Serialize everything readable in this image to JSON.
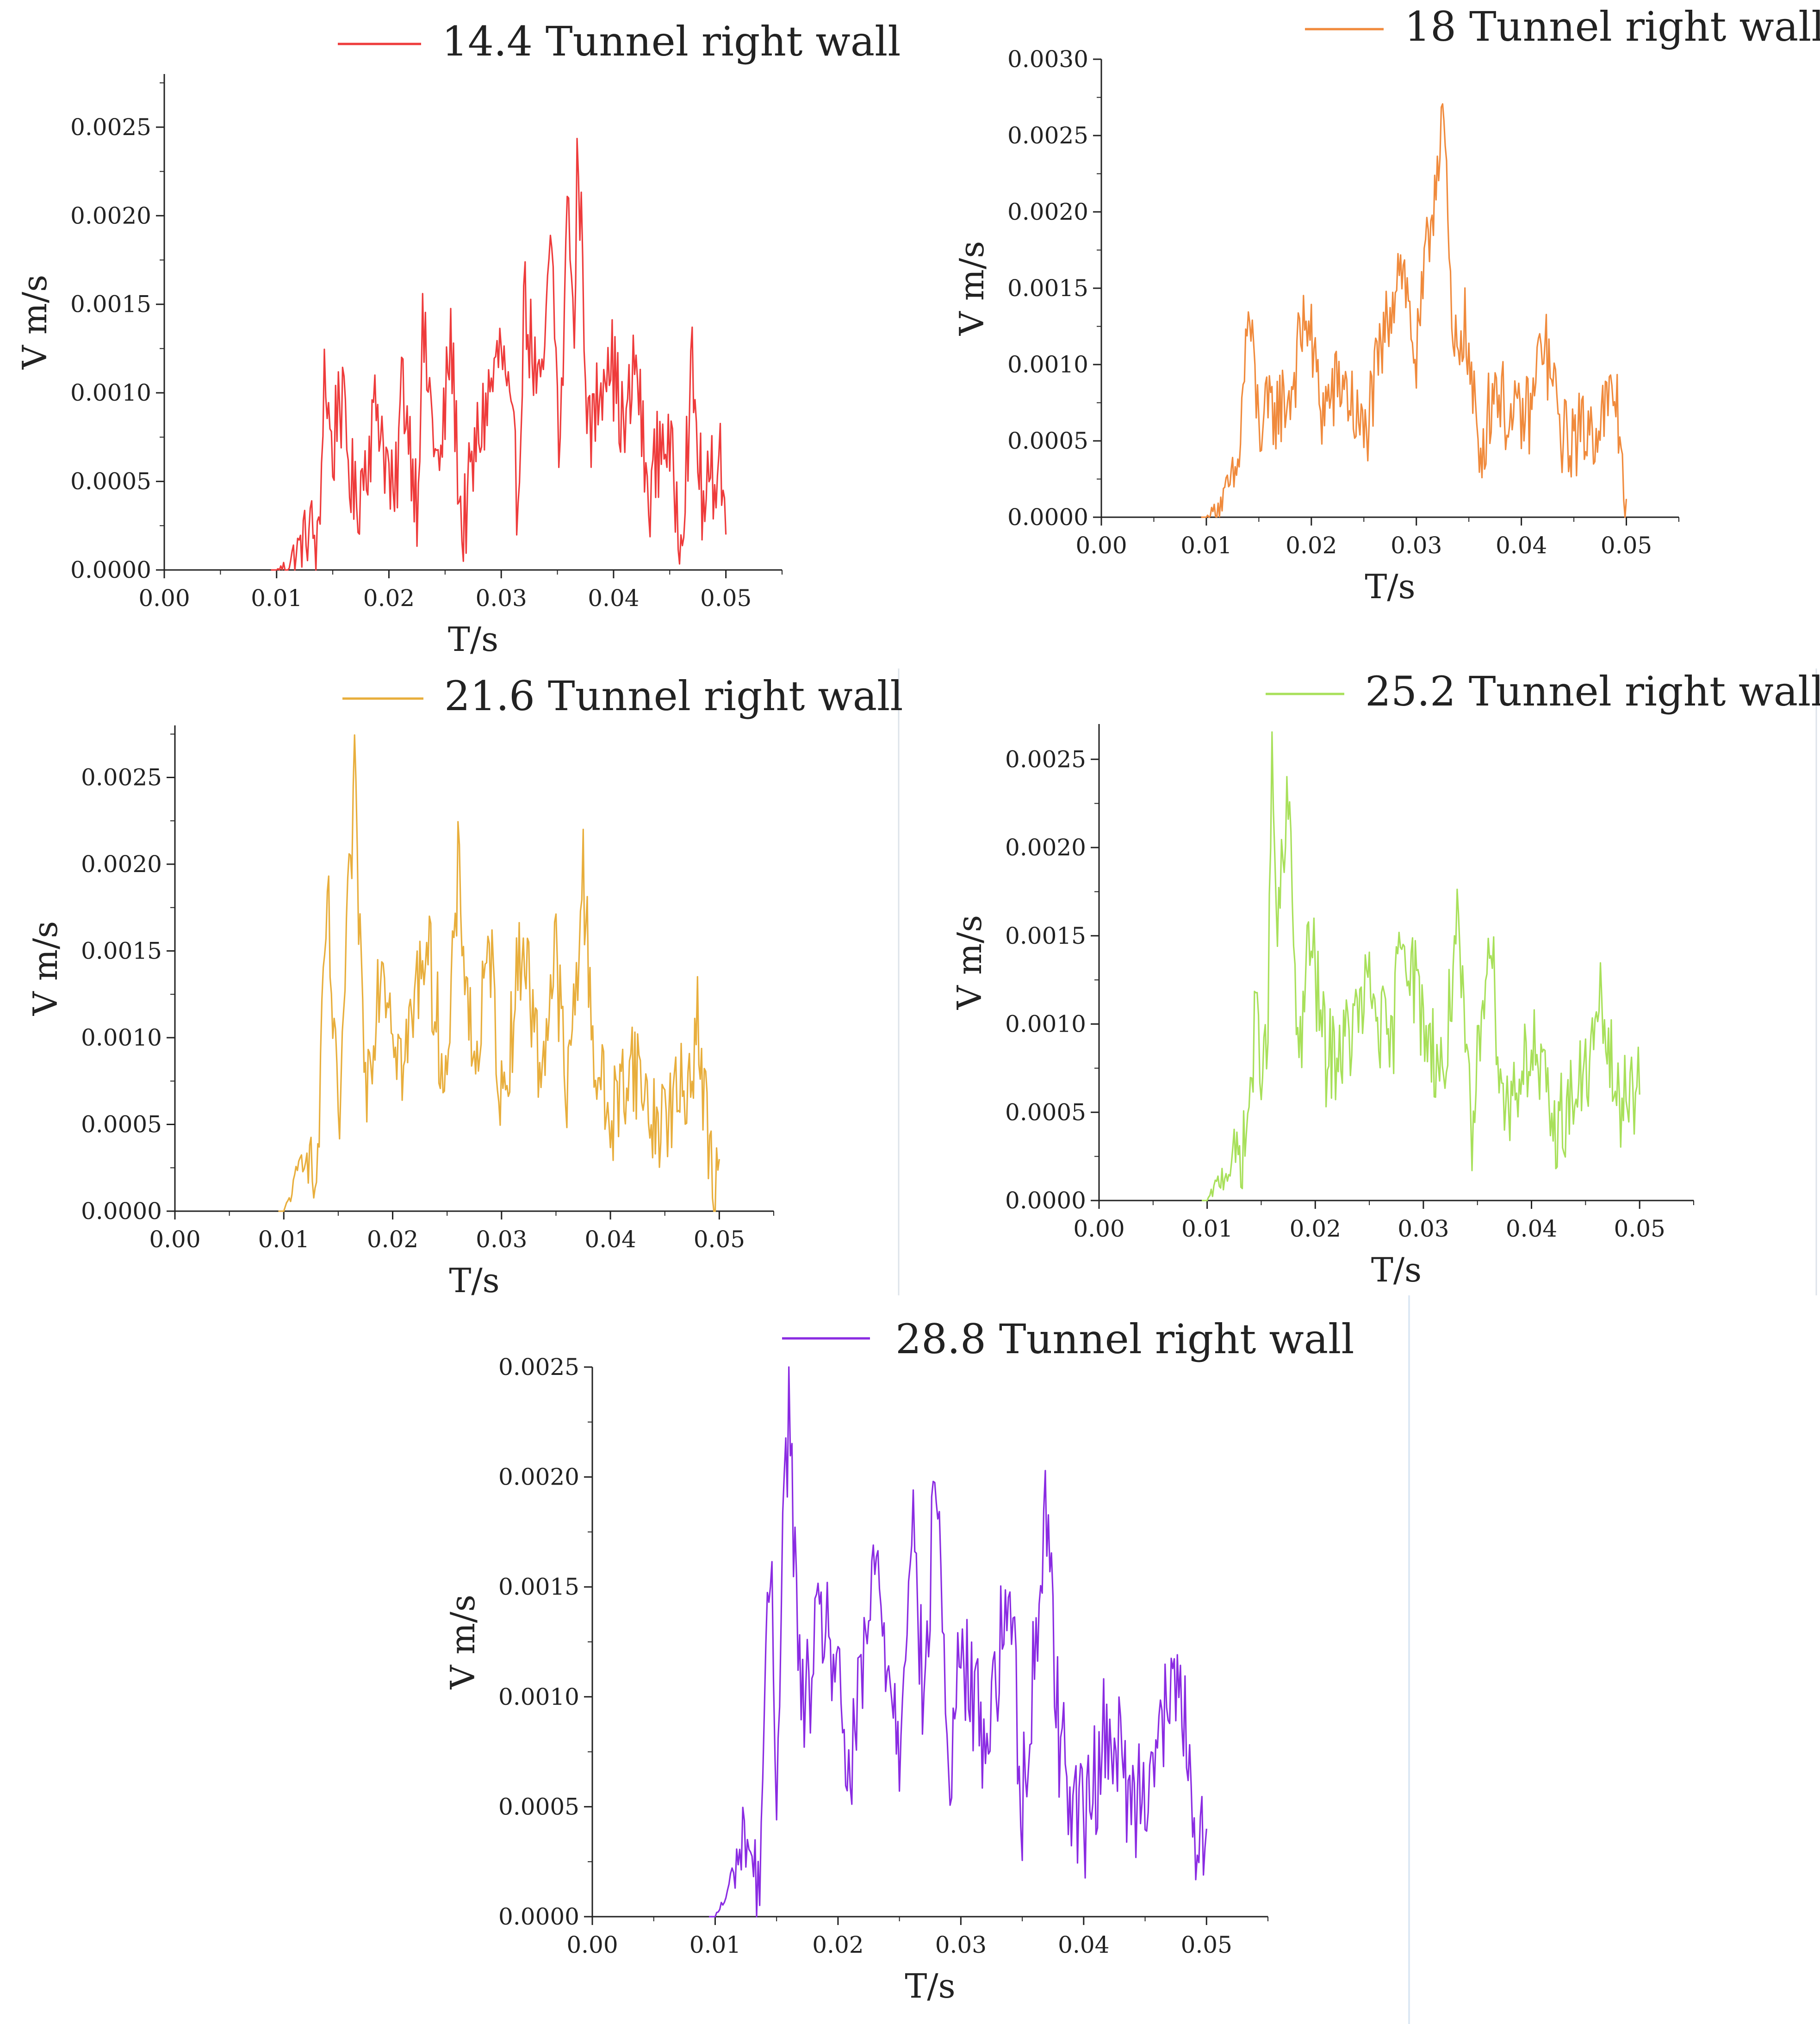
{
  "figure": {
    "background": "#ffffff",
    "axis_color": "#222222"
  },
  "chart_data": [
    {
      "type": "line",
      "series": [
        {
          "name": "14.4 Tunnel right wall",
          "color": "#ee3b3b"
        }
      ],
      "xlabel": "T/s",
      "ylabel": "V m/s",
      "xlim": [
        0,
        0.055
      ],
      "ylim": [
        0,
        0.0028
      ],
      "xticks": [
        0.0,
        0.01,
        0.02,
        0.03,
        0.04,
        0.05
      ],
      "xtick_labels": [
        "0.00",
        "0.01",
        "0.02",
        "0.03",
        "0.04",
        "0.05"
      ],
      "yticks": [
        0.0,
        0.0005,
        0.001,
        0.0015,
        0.002,
        0.0025
      ],
      "ytick_labels": [
        "0.0000",
        "0.0005",
        "0.0010",
        "0.0015",
        "0.0020",
        "0.0025"
      ],
      "keypoints": [
        [
          0.01,
          0.0
        ],
        [
          0.0108,
          2e-05
        ],
        [
          0.012,
          0.00012
        ],
        [
          0.013,
          0.00025
        ],
        [
          0.0138,
          8e-05
        ],
        [
          0.0142,
          0.00119
        ],
        [
          0.015,
          0.0006
        ],
        [
          0.0155,
          0.00105
        ],
        [
          0.017,
          0.00035
        ],
        [
          0.019,
          0.00095
        ],
        [
          0.0205,
          0.0003
        ],
        [
          0.0212,
          0.0011
        ],
        [
          0.0225,
          0.0004
        ],
        [
          0.023,
          0.00132
        ],
        [
          0.0245,
          0.0005
        ],
        [
          0.0255,
          0.00131
        ],
        [
          0.0265,
          0.0002
        ],
        [
          0.028,
          0.00077
        ],
        [
          0.03,
          0.00125
        ],
        [
          0.0315,
          0.0004
        ],
        [
          0.032,
          0.00155
        ],
        [
          0.0335,
          0.0009
        ],
        [
          0.0345,
          0.00185
        ],
        [
          0.0352,
          0.0006
        ],
        [
          0.036,
          0.0022
        ],
        [
          0.0365,
          0.0012
        ],
        [
          0.0368,
          0.00246
        ],
        [
          0.0378,
          0.0007
        ],
        [
          0.0395,
          0.0013
        ],
        [
          0.041,
          0.00075
        ],
        [
          0.042,
          0.0012
        ],
        [
          0.043,
          0.0004
        ],
        [
          0.0445,
          0.0008
        ],
        [
          0.046,
          0.00025
        ],
        [
          0.047,
          0.0011
        ],
        [
          0.048,
          0.0003
        ],
        [
          0.0495,
          0.0007
        ],
        [
          0.05,
          0.0002
        ]
      ],
      "amplitude": 0.00028
    },
    {
      "type": "line",
      "series": [
        {
          "name": "18 Tunnel right wall",
          "color": "#f08a3c"
        }
      ],
      "xlabel": "T/s",
      "ylabel": "V m/s",
      "xlim": [
        0,
        0.055
      ],
      "ylim": [
        0,
        0.003
      ],
      "xticks": [
        0.0,
        0.01,
        0.02,
        0.03,
        0.04,
        0.05
      ],
      "xtick_labels": [
        "0.00",
        "0.01",
        "0.02",
        "0.03",
        "0.04",
        "0.05"
      ],
      "yticks": [
        0.0,
        0.0005,
        0.001,
        0.0015,
        0.002,
        0.0025,
        0.003
      ],
      "ytick_labels": [
        "0.0000",
        "0.0005",
        "0.0010",
        "0.0015",
        "0.0020",
        "0.0025",
        "0.0030"
      ],
      "keypoints": [
        [
          0.01,
          0.0
        ],
        [
          0.0115,
          0.0001
        ],
        [
          0.013,
          0.0003
        ],
        [
          0.014,
          0.00135
        ],
        [
          0.015,
          0.0006
        ],
        [
          0.018,
          0.0008
        ],
        [
          0.0195,
          0.00135
        ],
        [
          0.021,
          0.0007
        ],
        [
          0.023,
          0.0009
        ],
        [
          0.025,
          0.0005
        ],
        [
          0.027,
          0.0012
        ],
        [
          0.0285,
          0.00175
        ],
        [
          0.03,
          0.001
        ],
        [
          0.031,
          0.0017
        ],
        [
          0.032,
          0.00235
        ],
        [
          0.0325,
          0.00273
        ],
        [
          0.0335,
          0.001
        ],
        [
          0.0345,
          0.0013
        ],
        [
          0.036,
          0.0004
        ],
        [
          0.0375,
          0.0009
        ],
        [
          0.039,
          0.0006
        ],
        [
          0.041,
          0.0007
        ],
        [
          0.042,
          0.0012
        ],
        [
          0.044,
          0.0005
        ],
        [
          0.047,
          0.0006
        ],
        [
          0.049,
          0.0008
        ],
        [
          0.05,
          0.00012
        ]
      ],
      "amplitude": 0.00028
    },
    {
      "type": "line",
      "series": [
        {
          "name": "21.6 Tunnel right wall",
          "color": "#e8ae3c"
        }
      ],
      "xlabel": "T/s",
      "ylabel": "V m/s",
      "xlim": [
        0,
        0.055
      ],
      "ylim": [
        0,
        0.0028
      ],
      "xticks": [
        0.0,
        0.01,
        0.02,
        0.03,
        0.04,
        0.05
      ],
      "xtick_labels": [
        "0.00",
        "0.01",
        "0.02",
        "0.03",
        "0.04",
        "0.05"
      ],
      "yticks": [
        0.0,
        0.0005,
        0.001,
        0.0015,
        0.002,
        0.0025
      ],
      "ytick_labels": [
        "0.0000",
        "0.0005",
        "0.0010",
        "0.0015",
        "0.0020",
        "0.0025"
      ],
      "keypoints": [
        [
          0.01,
          0.0
        ],
        [
          0.011,
          0.00015
        ],
        [
          0.012,
          0.0004
        ],
        [
          0.013,
          0.0001
        ],
        [
          0.014,
          0.00182
        ],
        [
          0.015,
          0.0004
        ],
        [
          0.016,
          0.0018
        ],
        [
          0.0165,
          0.00245
        ],
        [
          0.0175,
          0.0007
        ],
        [
          0.019,
          0.0015
        ],
        [
          0.021,
          0.0008
        ],
        [
          0.023,
          0.0016
        ],
        [
          0.025,
          0.0007
        ],
        [
          0.026,
          0.00195
        ],
        [
          0.0275,
          0.0008
        ],
        [
          0.029,
          0.0015
        ],
        [
          0.03,
          0.0006
        ],
        [
          0.032,
          0.0016
        ],
        [
          0.0335,
          0.0008
        ],
        [
          0.035,
          0.0015
        ],
        [
          0.036,
          0.0006
        ],
        [
          0.0375,
          0.00193
        ],
        [
          0.0385,
          0.0009
        ],
        [
          0.04,
          0.0005
        ],
        [
          0.042,
          0.0009
        ],
        [
          0.044,
          0.0005
        ],
        [
          0.047,
          0.0007
        ],
        [
          0.048,
          0.0011
        ],
        [
          0.049,
          0.0004
        ],
        [
          0.0495,
          0.0
        ],
        [
          0.05,
          0.0003
        ]
      ],
      "amplitude": 0.0003
    },
    {
      "type": "line",
      "series": [
        {
          "name": "25.2 Tunnel right wall",
          "color": "#a8e05a"
        }
      ],
      "xlabel": "T/s",
      "ylabel": "V m/s",
      "xlim": [
        0,
        0.055
      ],
      "ylim": [
        0,
        0.0027
      ],
      "xticks": [
        0.0,
        0.01,
        0.02,
        0.03,
        0.04,
        0.05
      ],
      "xtick_labels": [
        "0.00",
        "0.01",
        "0.02",
        "0.03",
        "0.04",
        "0.05"
      ],
      "yticks": [
        0.0,
        0.0005,
        0.001,
        0.0015,
        0.002,
        0.0025
      ],
      "ytick_labels": [
        "0.0000",
        "0.0005",
        "0.0010",
        "0.0015",
        "0.0020",
        "0.0025"
      ],
      "keypoints": [
        [
          0.01,
          0.0
        ],
        [
          0.012,
          0.0002
        ],
        [
          0.0135,
          0.0003
        ],
        [
          0.0145,
          0.001
        ],
        [
          0.0155,
          0.0007
        ],
        [
          0.016,
          0.00243
        ],
        [
          0.0165,
          0.0015
        ],
        [
          0.0175,
          0.00225
        ],
        [
          0.0185,
          0.0008
        ],
        [
          0.0195,
          0.0015
        ],
        [
          0.021,
          0.0008
        ],
        [
          0.023,
          0.0009
        ],
        [
          0.025,
          0.0012
        ],
        [
          0.027,
          0.0008
        ],
        [
          0.028,
          0.0016
        ],
        [
          0.03,
          0.001
        ],
        [
          0.032,
          0.0007
        ],
        [
          0.033,
          0.0016
        ],
        [
          0.0345,
          0.0003
        ],
        [
          0.036,
          0.0016
        ],
        [
          0.0375,
          0.0005
        ],
        [
          0.04,
          0.0009
        ],
        [
          0.042,
          0.0004
        ],
        [
          0.045,
          0.0007
        ],
        [
          0.0465,
          0.0011
        ],
        [
          0.048,
          0.0005
        ],
        [
          0.049,
          0.0007
        ],
        [
          0.05,
          0.0006
        ]
      ],
      "amplitude": 0.00028
    },
    {
      "type": "line",
      "series": [
        {
          "name": "28.8 Tunnel right wall",
          "color": "#8a2be2"
        }
      ],
      "xlabel": "T/s",
      "ylabel": "V m/s",
      "xlim": [
        0,
        0.055
      ],
      "ylim": [
        0,
        0.0025
      ],
      "xticks": [
        0.0,
        0.01,
        0.02,
        0.03,
        0.04,
        0.05
      ],
      "xtick_labels": [
        "0.00",
        "0.01",
        "0.02",
        "0.03",
        "0.04",
        "0.05"
      ],
      "yticks": [
        0.0,
        0.0005,
        0.001,
        0.0015,
        0.002,
        0.0025
      ],
      "ytick_labels": [
        "0.0000",
        "0.0005",
        "0.0010",
        "0.0015",
        "0.0020",
        "0.0025"
      ],
      "keypoints": [
        [
          0.01,
          0.0
        ],
        [
          0.011,
          0.0001
        ],
        [
          0.0125,
          0.0004
        ],
        [
          0.0135,
          0.0001
        ],
        [
          0.0145,
          0.0016
        ],
        [
          0.015,
          0.0006
        ],
        [
          0.0155,
          0.0018
        ],
        [
          0.016,
          0.00231
        ],
        [
          0.017,
          0.0009
        ],
        [
          0.019,
          0.0014
        ],
        [
          0.021,
          0.0006
        ],
        [
          0.023,
          0.0016
        ],
        [
          0.025,
          0.0008
        ],
        [
          0.026,
          0.0019
        ],
        [
          0.027,
          0.0009
        ],
        [
          0.028,
          0.0021
        ],
        [
          0.029,
          0.0006
        ],
        [
          0.03,
          0.0012
        ],
        [
          0.032,
          0.0008
        ],
        [
          0.034,
          0.0015
        ],
        [
          0.035,
          0.0005
        ],
        [
          0.037,
          0.0019
        ],
        [
          0.038,
          0.0008
        ],
        [
          0.04,
          0.0004
        ],
        [
          0.042,
          0.0009
        ],
        [
          0.044,
          0.0005
        ],
        [
          0.046,
          0.0008
        ],
        [
          0.048,
          0.0011
        ],
        [
          0.049,
          0.0002
        ],
        [
          0.0495,
          0.0003
        ],
        [
          0.05,
          0.0004
        ]
      ],
      "amplitude": 0.00028
    }
  ]
}
